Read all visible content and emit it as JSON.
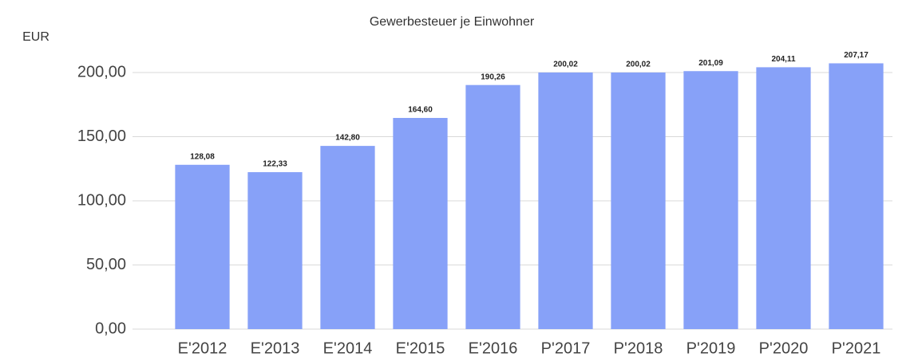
{
  "chart_data": {
    "type": "bar",
    "title": "Gewerbesteuer je Einwohner",
    "y_label": "EUR",
    "categories": [
      "E'2012",
      "E'2013",
      "E'2014",
      "E'2015",
      "E'2016",
      "P'2017",
      "P'2018",
      "P'2019",
      "P'2020",
      "P'2021"
    ],
    "values": [
      128.08,
      122.33,
      142.8,
      164.6,
      190.26,
      200.02,
      200.02,
      201.09,
      204.11,
      207.17
    ],
    "value_labels": [
      "128,08",
      "122,33",
      "142,80",
      "164,60",
      "190,26",
      "200,02",
      "200,02",
      "201,09",
      "204,11",
      "207,17"
    ],
    "color": "#87a1f8",
    "ylim": [
      0,
      220
    ],
    "yticks": [
      {
        "value": 0,
        "label": "0,00"
      },
      {
        "value": 50,
        "label": "50,00"
      },
      {
        "value": 100,
        "label": "100,00"
      },
      {
        "value": 150,
        "label": "150,00"
      },
      {
        "value": 200,
        "label": "200,00"
      }
    ],
    "grid": true
  }
}
